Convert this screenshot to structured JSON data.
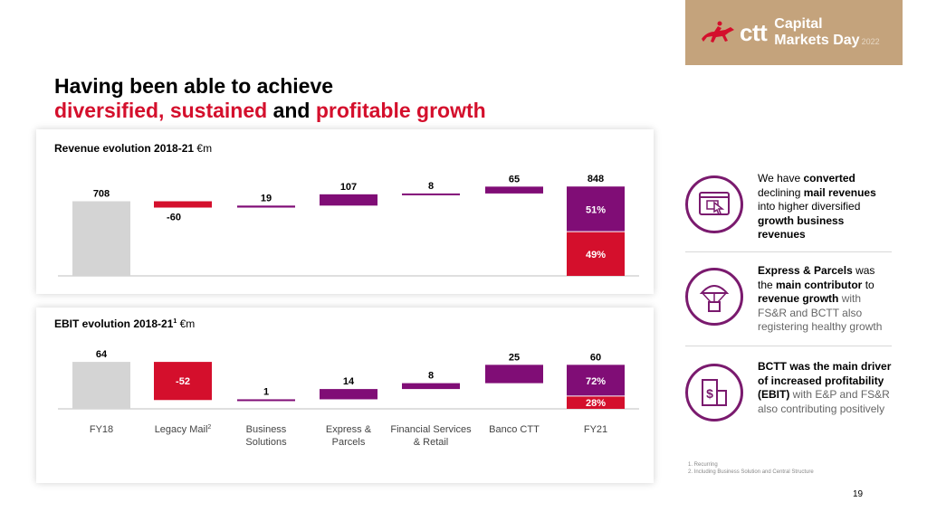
{
  "brand": {
    "logo_text": "ctt",
    "event_line1": "Capital",
    "event_line2": "Markets Day",
    "event_year": "2022"
  },
  "title": {
    "line1": "Having been able to achieve",
    "line2_red1": "diversified, sustained",
    "line2_mid": " and ",
    "line2_red2": "profitable growth"
  },
  "revenue": {
    "title": "Revenue evolution 2018-21 ",
    "unit": "€m"
  },
  "ebit": {
    "title": "EBIT evolution 2018-21",
    "sup": "1",
    "unit": " €m"
  },
  "colors": {
    "red": "#d40f2c",
    "purple": "#800d76",
    "grey": "#d4d4d4",
    "axis": "#bfbfbf"
  },
  "chart_data": [
    {
      "type": "bar",
      "subtype": "waterfall",
      "title": "Revenue evolution 2018-21 €m",
      "categories": [
        "FY18",
        "Legacy Mail",
        "Business Solutions",
        "Express & Parcels",
        "Financial Services & Retail",
        "Banco CTT",
        "FY21"
      ],
      "values": [
        708,
        -60,
        19,
        107,
        8,
        65,
        848
      ],
      "labels": [
        "708",
        "-60",
        "19",
        "107",
        "8",
        "65",
        "848"
      ],
      "final_split": [
        {
          "label": "51%",
          "value": 51,
          "color": "#800d76"
        },
        {
          "label": "49%",
          "value": 49,
          "color": "#d40f2c"
        }
      ]
    },
    {
      "type": "bar",
      "subtype": "waterfall",
      "title": "EBIT evolution 2018-21 €m",
      "categories": [
        "FY18",
        "Legacy Mail",
        "Business Solutions",
        "Express & Parcels",
        "Financial Services & Retail",
        "Banco CTT",
        "FY21"
      ],
      "values": [
        64,
        -52,
        1,
        14,
        8,
        25,
        60
      ],
      "labels": [
        "64",
        "-52",
        "1",
        "14",
        "8",
        "25",
        "60"
      ],
      "final_split": [
        {
          "label": "72%",
          "value": 72,
          "color": "#800d76"
        },
        {
          "label": "28%",
          "value": 28,
          "color": "#d40f2c"
        }
      ]
    }
  ],
  "xlabels": [
    {
      "lines": [
        "FY18"
      ]
    },
    {
      "lines": [
        "Legacy Mail"
      ],
      "sup": "2"
    },
    {
      "lines": [
        "Business",
        "Solutions"
      ]
    },
    {
      "lines": [
        "Express &",
        "Parcels"
      ]
    },
    {
      "lines": [
        "Financial Services",
        "& Retail"
      ]
    },
    {
      "lines": [
        "Banco CTT"
      ]
    },
    {
      "lines": [
        "FY21"
      ]
    }
  ],
  "points": {
    "p1": {
      "a": "We have ",
      "b": "converted",
      "c": "declining ",
      "d": "mail revenues",
      "e": "into higher diversified",
      "f": "growth business revenues",
      "icon": "hand-click-browser-icon"
    },
    "p2": {
      "a": "Express & Parcels",
      "b": " was the ",
      "c": "main contributor",
      "d": " to ",
      "e": "revenue growth",
      "f": " with FS&R and BCTT also registering healthy growth",
      "icon": "parachute-parcel-icon"
    },
    "p3": {
      "a": "BCTT was the main driver of increased profitability (EBIT)",
      "b": " with E&P and FS&R also contributing positively",
      "icon": "bank-building-icon"
    }
  },
  "footnotes": {
    "f1": "1.  Recurring",
    "f2": "2.  Including Business Solution and Central Structure"
  },
  "page_number": "19"
}
